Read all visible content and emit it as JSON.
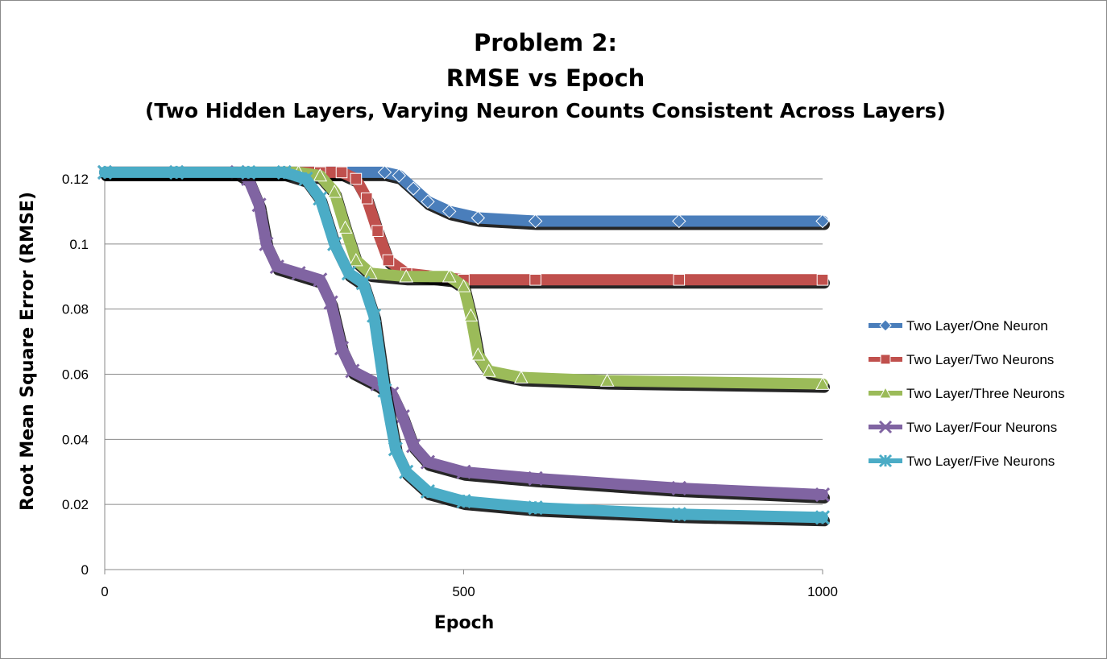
{
  "chart_data": {
    "type": "line",
    "title_lines": [
      "Problem 2:",
      "RMSE vs Epoch",
      "(Two Hidden Layers, Varying Neuron Counts Consistent Across Layers)"
    ],
    "xlabel": "Epoch",
    "ylabel": "Root Mean Square Error (RMSE)",
    "xlim": [
      0,
      1000
    ],
    "ylim": [
      0,
      0.12
    ],
    "x_ticks": [
      0,
      500,
      1000
    ],
    "x_tick_labels": [
      "0",
      "500",
      "1000"
    ],
    "y_ticks": [
      0,
      0.02,
      0.04,
      0.06,
      0.08,
      0.1,
      0.12
    ],
    "y_tick_labels": [
      "0",
      "0.02",
      "0.04",
      "0.06",
      "0.08",
      "0.1",
      "0.12"
    ],
    "grid": "horizontal",
    "legend_position": "right",
    "series": [
      {
        "name": "Two Layer/One Neuron",
        "color": "#4a7ebb",
        "marker": "diamond",
        "points": [
          [
            0,
            0.122
          ],
          [
            100,
            0.122
          ],
          [
            200,
            0.122
          ],
          [
            300,
            0.122
          ],
          [
            390,
            0.122
          ],
          [
            410,
            0.121
          ],
          [
            430,
            0.117
          ],
          [
            450,
            0.113
          ],
          [
            480,
            0.11
          ],
          [
            520,
            0.108
          ],
          [
            600,
            0.107
          ],
          [
            800,
            0.107
          ],
          [
            1000,
            0.107
          ]
        ]
      },
      {
        "name": "Two Layer/Two Neurons",
        "color": "#c0504d",
        "marker": "square",
        "points": [
          [
            0,
            0.122
          ],
          [
            100,
            0.122
          ],
          [
            200,
            0.122
          ],
          [
            300,
            0.122
          ],
          [
            330,
            0.122
          ],
          [
            350,
            0.12
          ],
          [
            365,
            0.114
          ],
          [
            380,
            0.104
          ],
          [
            395,
            0.095
          ],
          [
            420,
            0.091
          ],
          [
            460,
            0.09
          ],
          [
            500,
            0.089
          ],
          [
            600,
            0.089
          ],
          [
            800,
            0.089
          ],
          [
            1000,
            0.089
          ]
        ]
      },
      {
        "name": "Two Layer/Three Neurons",
        "color": "#9bbb59",
        "marker": "triangle",
        "points": [
          [
            0,
            0.122
          ],
          [
            100,
            0.122
          ],
          [
            200,
            0.122
          ],
          [
            270,
            0.122
          ],
          [
            300,
            0.121
          ],
          [
            320,
            0.116
          ],
          [
            335,
            0.105
          ],
          [
            350,
            0.095
          ],
          [
            370,
            0.091
          ],
          [
            420,
            0.09
          ],
          [
            480,
            0.09
          ],
          [
            500,
            0.087
          ],
          [
            510,
            0.078
          ],
          [
            520,
            0.066
          ],
          [
            535,
            0.061
          ],
          [
            580,
            0.059
          ],
          [
            700,
            0.058
          ],
          [
            1000,
            0.057
          ]
        ]
      },
      {
        "name": "Two Layer/Four Neurons",
        "color": "#8064a2",
        "marker": "x",
        "points": [
          [
            0,
            0.122
          ],
          [
            100,
            0.122
          ],
          [
            185,
            0.122
          ],
          [
            200,
            0.12
          ],
          [
            215,
            0.112
          ],
          [
            225,
            0.1
          ],
          [
            240,
            0.093
          ],
          [
            270,
            0.091
          ],
          [
            300,
            0.089
          ],
          [
            315,
            0.082
          ],
          [
            330,
            0.068
          ],
          [
            345,
            0.061
          ],
          [
            380,
            0.057
          ],
          [
            400,
            0.054
          ],
          [
            415,
            0.047
          ],
          [
            430,
            0.038
          ],
          [
            450,
            0.033
          ],
          [
            500,
            0.03
          ],
          [
            600,
            0.028
          ],
          [
            800,
            0.025
          ],
          [
            1000,
            0.023
          ]
        ]
      },
      {
        "name": "Two Layer/Five Neurons",
        "color": "#4bacc6",
        "marker": "star",
        "points": [
          [
            0,
            0.122
          ],
          [
            100,
            0.122
          ],
          [
            200,
            0.122
          ],
          [
            250,
            0.122
          ],
          [
            280,
            0.12
          ],
          [
            300,
            0.114
          ],
          [
            320,
            0.1
          ],
          [
            340,
            0.091
          ],
          [
            360,
            0.088
          ],
          [
            375,
            0.078
          ],
          [
            390,
            0.055
          ],
          [
            405,
            0.037
          ],
          [
            420,
            0.03
          ],
          [
            450,
            0.024
          ],
          [
            500,
            0.021
          ],
          [
            600,
            0.019
          ],
          [
            800,
            0.017
          ],
          [
            1000,
            0.016
          ]
        ]
      }
    ]
  }
}
